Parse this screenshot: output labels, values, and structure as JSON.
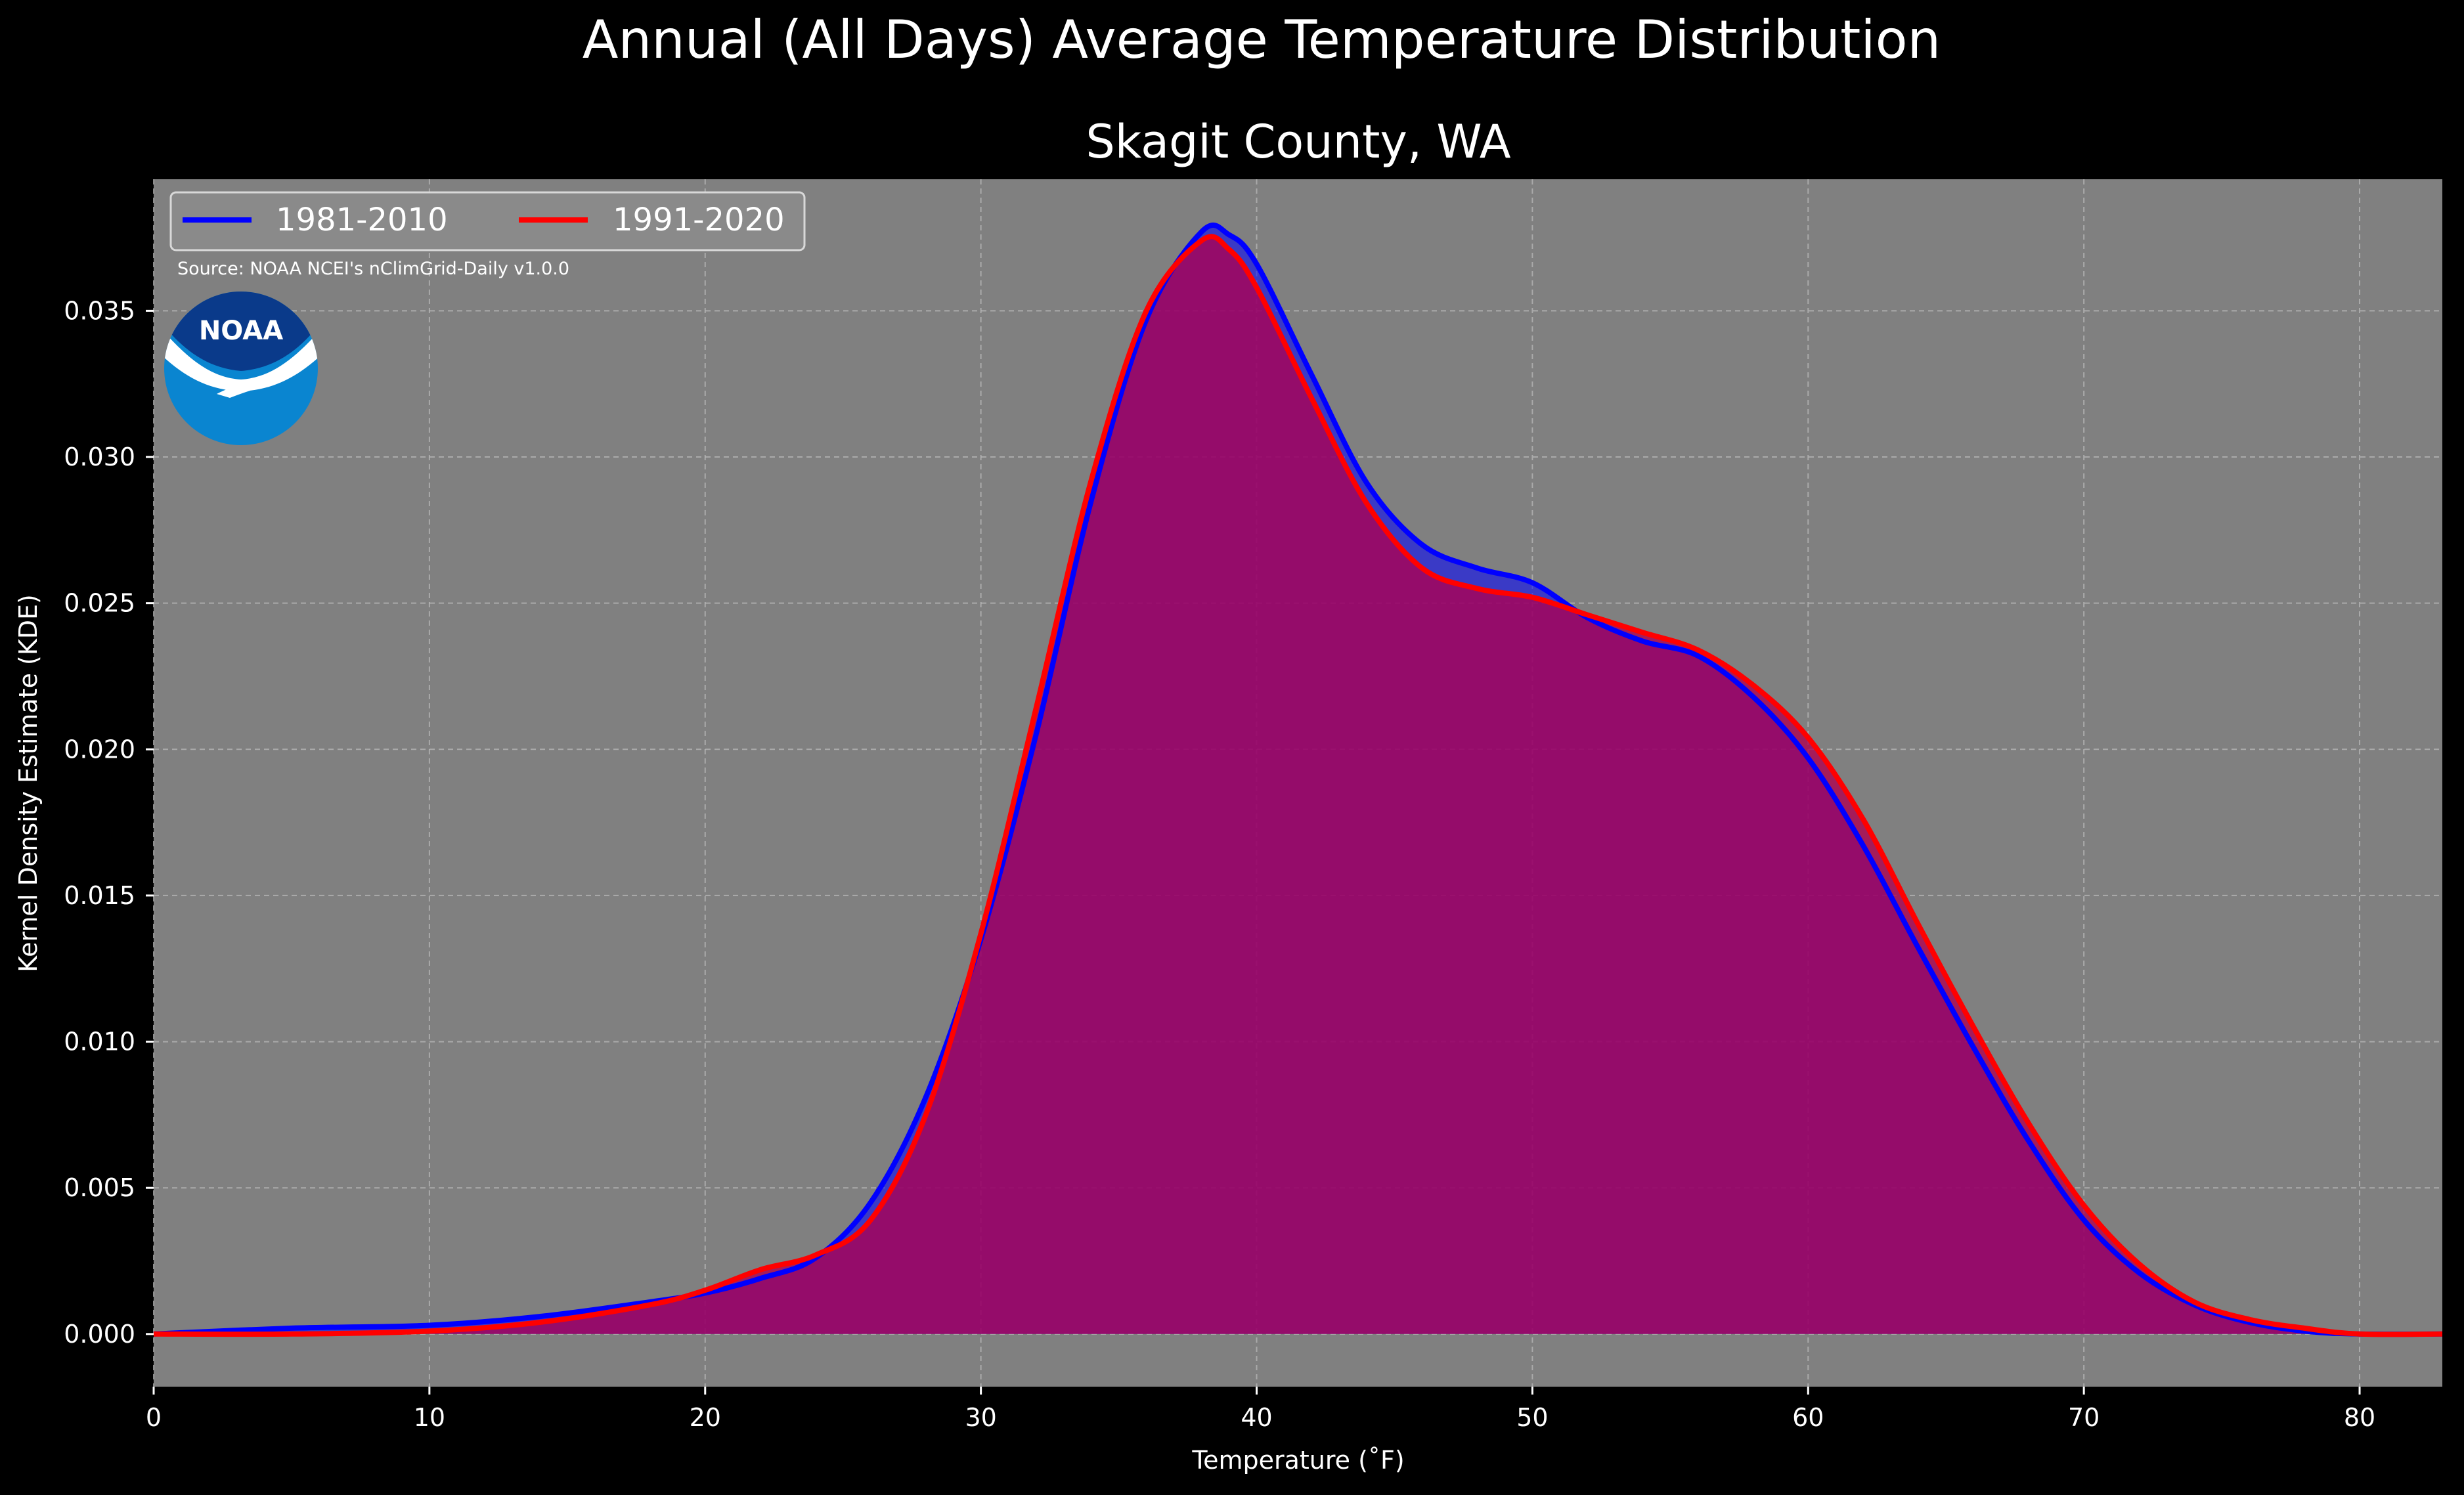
{
  "figure": {
    "suptitle": "Annual (All Days) Average Temperature Distribution",
    "title": "Skagit County, WA",
    "source": "Source: NOAA NCEI's nClimGrid-Daily v1.0.0",
    "logo_text": "NOAA"
  },
  "colors": {
    "background": "#000000",
    "plot_background": "#808080",
    "series_1981": "#0000ff",
    "series_1991": "#ff0000",
    "fill_1981": "#0000ff",
    "fill_1991": "#b0004f",
    "grid": "#bdbdbd",
    "text": "#ffffff",
    "logo_dark": "#0a3a8a",
    "logo_light": "#0a85d0"
  },
  "chart_data": {
    "type": "area",
    "xlabel": "Temperature ($^\\circ$F)",
    "xlabel_display": "Temperature (˚F)",
    "ylabel": "Kernel Density Estimate (KDE)",
    "xlim": [
      0,
      83
    ],
    "ylim": [
      -0.0018,
      0.0395
    ],
    "xticks": [
      0,
      10,
      20,
      30,
      40,
      50,
      60,
      70,
      80
    ],
    "xtick_labels": [
      "0",
      "10",
      "20",
      "30",
      "40",
      "50",
      "60",
      "70",
      "80"
    ],
    "yticks": [
      0.0,
      0.005,
      0.01,
      0.015,
      0.02,
      0.025,
      0.03,
      0.035
    ],
    "ytick_labels": [
      "0.000",
      "0.005",
      "0.010",
      "0.015",
      "0.020",
      "0.025",
      "0.030",
      "0.035"
    ],
    "grid": true,
    "legend_position": "top-left",
    "series": [
      {
        "name": "1981-2010",
        "x": [
          0,
          5,
          10,
          14,
          18,
          20,
          22,
          24,
          26,
          28,
          30,
          32,
          34,
          36,
          38,
          39,
          40,
          42,
          44,
          46,
          48,
          50,
          52,
          54,
          56,
          58,
          60,
          62,
          64,
          66,
          68,
          70,
          72,
          74,
          76,
          78,
          80,
          83
        ],
        "y": [
          0.0,
          0.0002,
          0.0003,
          0.0006,
          0.0011,
          0.0014,
          0.0019,
          0.0026,
          0.0045,
          0.0081,
          0.0135,
          0.0205,
          0.0285,
          0.0347,
          0.0377,
          0.0376,
          0.0366,
          0.0328,
          0.0291,
          0.027,
          0.0262,
          0.0257,
          0.0245,
          0.0237,
          0.0232,
          0.0218,
          0.0197,
          0.0167,
          0.0132,
          0.0098,
          0.0066,
          0.0039,
          0.0021,
          0.001,
          0.0004,
          0.0001,
          0.0,
          0.0
        ]
      },
      {
        "name": "1991-2020",
        "x": [
          0,
          5,
          10,
          14,
          18,
          20,
          22,
          24,
          26,
          28,
          30,
          32,
          34,
          36,
          38,
          39,
          40,
          42,
          44,
          46,
          48,
          50,
          52,
          54,
          56,
          58,
          60,
          62,
          64,
          66,
          68,
          70,
          72,
          74,
          76,
          78,
          80,
          83
        ],
        "y": [
          0.0,
          0.0,
          0.0001,
          0.0004,
          0.001,
          0.0015,
          0.0022,
          0.0027,
          0.0039,
          0.0075,
          0.0137,
          0.0214,
          0.0292,
          0.035,
          0.0374,
          0.0371,
          0.0358,
          0.032,
          0.0284,
          0.0262,
          0.0255,
          0.0252,
          0.0246,
          0.024,
          0.0234,
          0.0222,
          0.0204,
          0.0176,
          0.014,
          0.0105,
          0.0072,
          0.0044,
          0.0024,
          0.0011,
          0.0005,
          0.0002,
          0.0,
          0.0
        ]
      }
    ]
  }
}
